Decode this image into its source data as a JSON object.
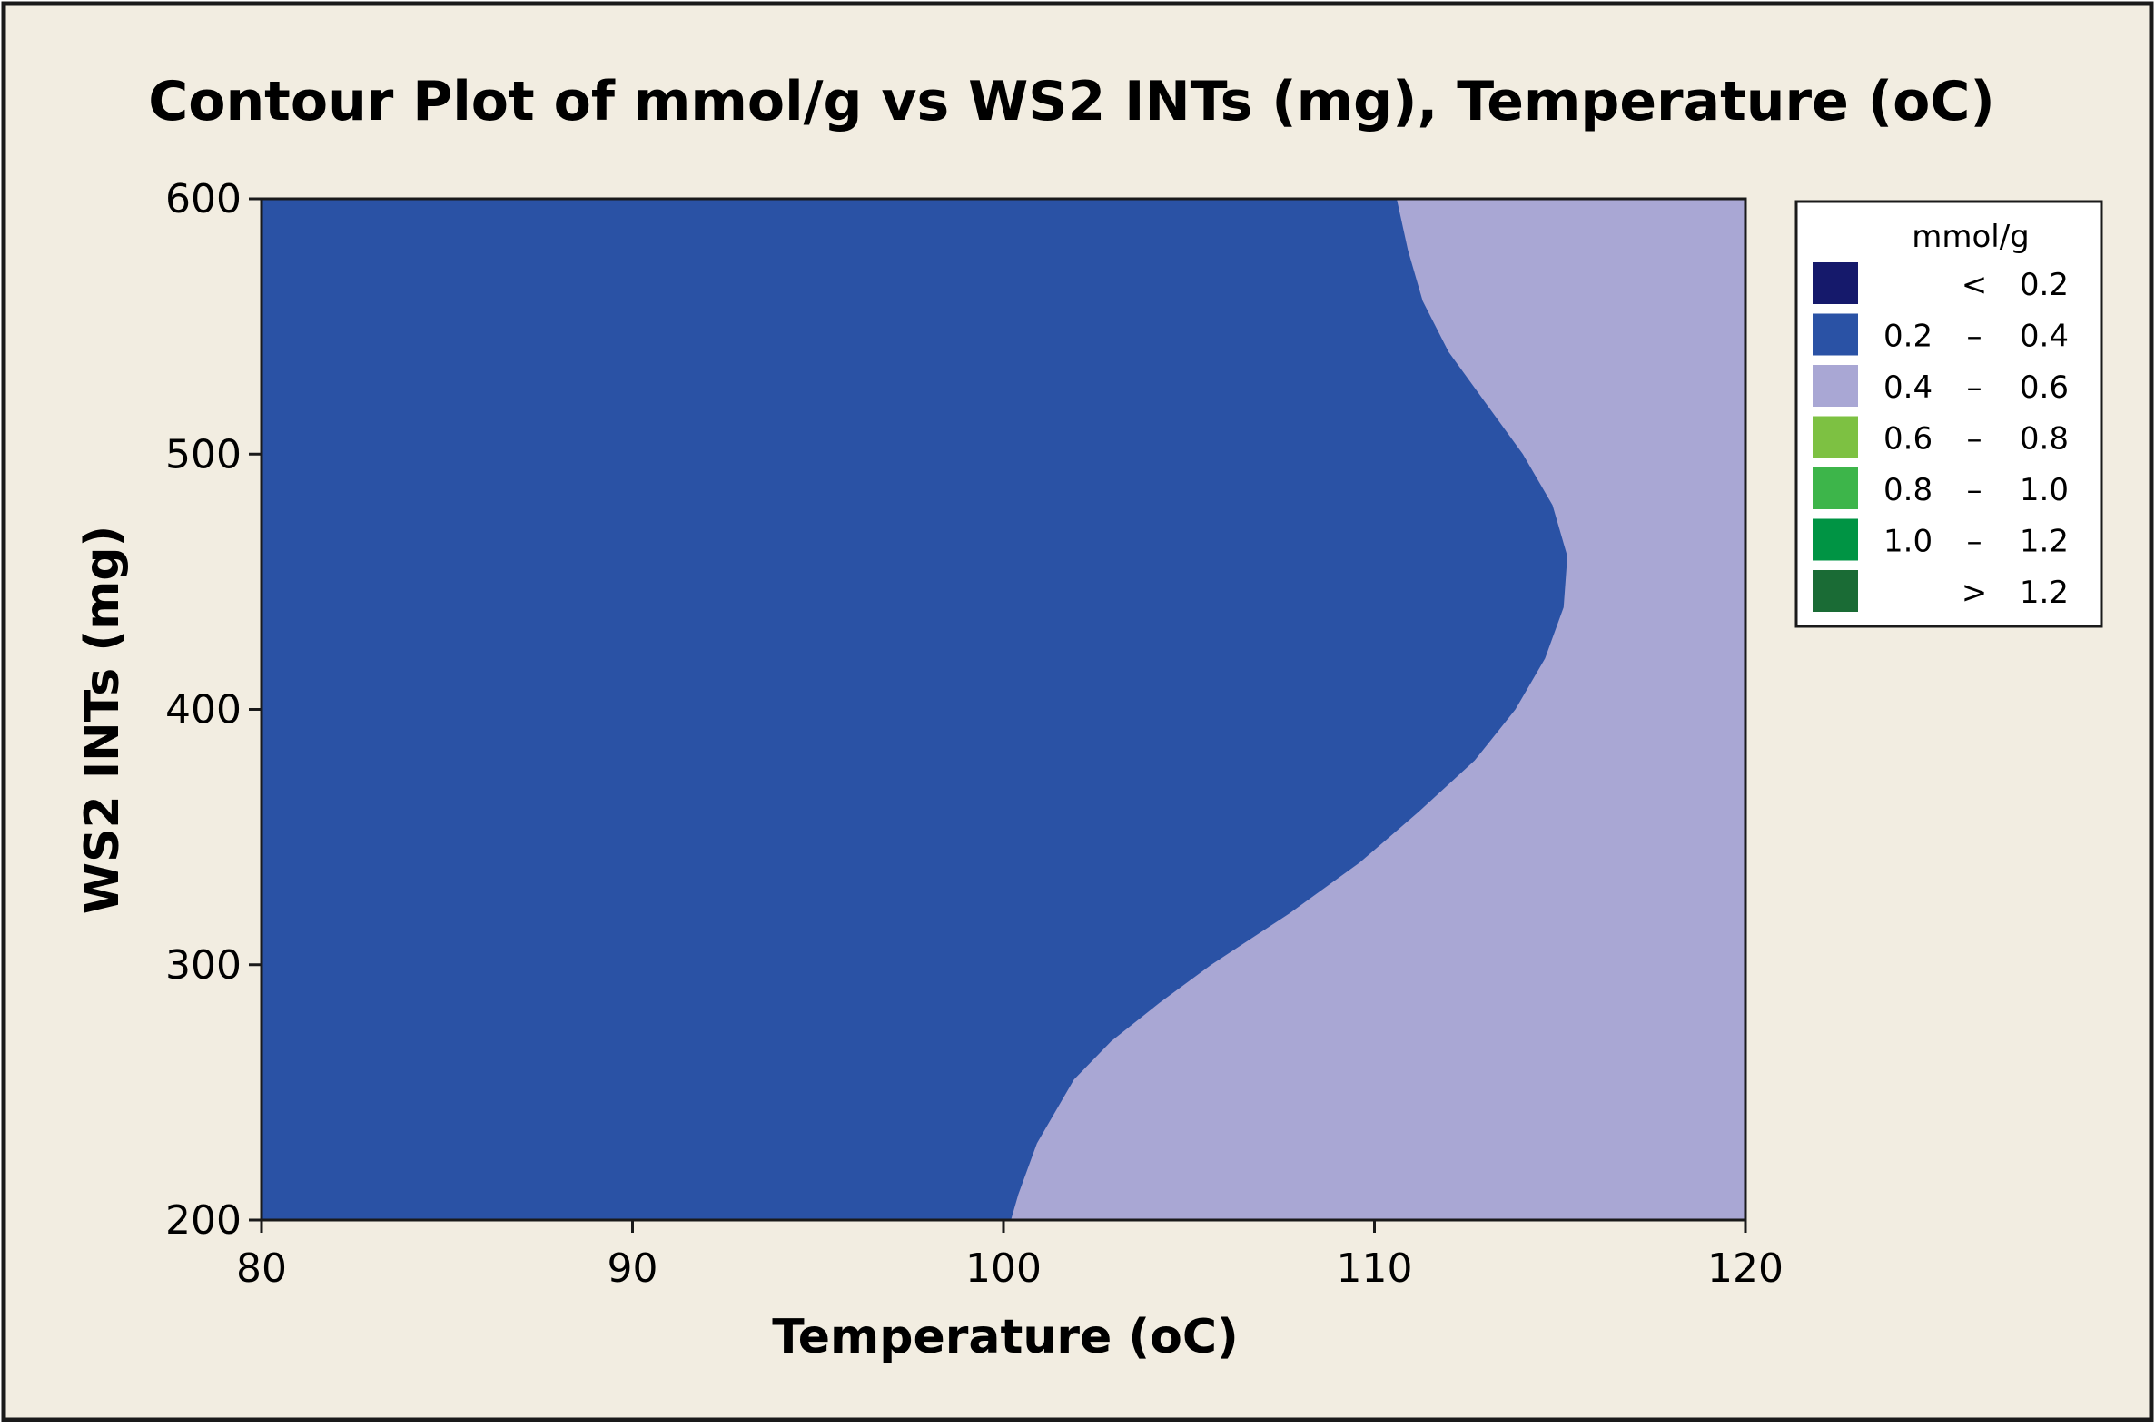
{
  "colors": {
    "page_background": "#F2EDE1",
    "plot_background": "#A9A7D4",
    "frame": "#1A1A1A",
    "text": "#000000"
  },
  "chart_data": {
    "type": "contour",
    "title": "Contour Plot of mmol/g vs WS2 INTs (mg), Temperature (oC)",
    "xlabel": "Temperature (oC)",
    "ylabel": "WS2 INTs (mg)",
    "xlim": [
      80,
      120
    ],
    "ylim": [
      200,
      600
    ],
    "x_ticks": [
      80,
      90,
      100,
      110,
      120
    ],
    "y_ticks": [
      200,
      300,
      400,
      500,
      600
    ],
    "grid": false,
    "legend_position": "right",
    "legend": {
      "title": "mmol/g",
      "entries": [
        {
          "lo": "",
          "sep": "<",
          "hi": "0.2",
          "color": "#15196B"
        },
        {
          "lo": "0.2",
          "sep": "–",
          "hi": "0.4",
          "color": "#2A52A5"
        },
        {
          "lo": "0.4",
          "sep": "–",
          "hi": "0.6",
          "color": "#A9A7D4"
        },
        {
          "lo": "0.6",
          "sep": "–",
          "hi": "0.8",
          "color": "#7DC142"
        },
        {
          "lo": "0.8",
          "sep": "–",
          "hi": "1.0",
          "color": "#3DB54A"
        },
        {
          "lo": "1.0",
          "sep": "–",
          "hi": "1.2",
          "color": "#009444"
        },
        {
          "lo": "",
          "sep": ">",
          "hi": "1.2",
          "color": "#1A6B35"
        }
      ]
    },
    "regions": [
      {
        "range": "0.2 – 0.4",
        "color": "#2A52A5",
        "boundary_0.4": [
          [
            110.6,
            600
          ],
          [
            110.9,
            580
          ],
          [
            111.3,
            560
          ],
          [
            112.0,
            540
          ],
          [
            113.0,
            520
          ],
          [
            114.0,
            500
          ],
          [
            114.8,
            480
          ],
          [
            115.2,
            460
          ],
          [
            115.1,
            440
          ],
          [
            114.6,
            420
          ],
          [
            113.8,
            400
          ],
          [
            112.7,
            380
          ],
          [
            111.2,
            360
          ],
          [
            109.6,
            340
          ],
          [
            107.7,
            320
          ],
          [
            105.6,
            300
          ],
          [
            104.2,
            285
          ],
          [
            102.9,
            270
          ],
          [
            101.9,
            255
          ],
          [
            100.9,
            230
          ],
          [
            100.4,
            210
          ],
          [
            100.2,
            200
          ]
        ]
      },
      {
        "range": "0.4 – 0.6",
        "color": "#A9A7D4"
      }
    ]
  }
}
